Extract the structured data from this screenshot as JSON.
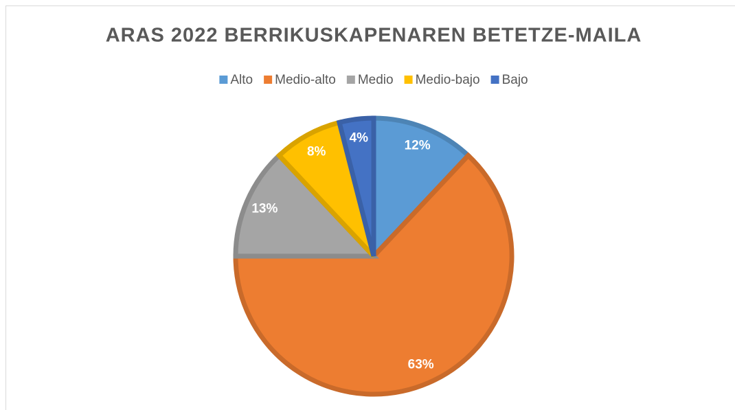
{
  "chart_data": {
    "type": "pie",
    "title": "ARAS 2022 BERRIKUSKAPENAREN BETETZE-MAILA",
    "categories": [
      "Alto",
      "Medio-alto",
      "Medio",
      "Medio-bajo",
      "Bajo"
    ],
    "values": [
      12,
      63,
      13,
      8,
      4
    ],
    "value_labels": [
      "12%",
      "63%",
      "13%",
      "8%",
      "4%"
    ],
    "colors": [
      "#5b9bd5",
      "#ed7d31",
      "#a5a5a5",
      "#ffc000",
      "#4472c4"
    ],
    "legend": "top"
  }
}
